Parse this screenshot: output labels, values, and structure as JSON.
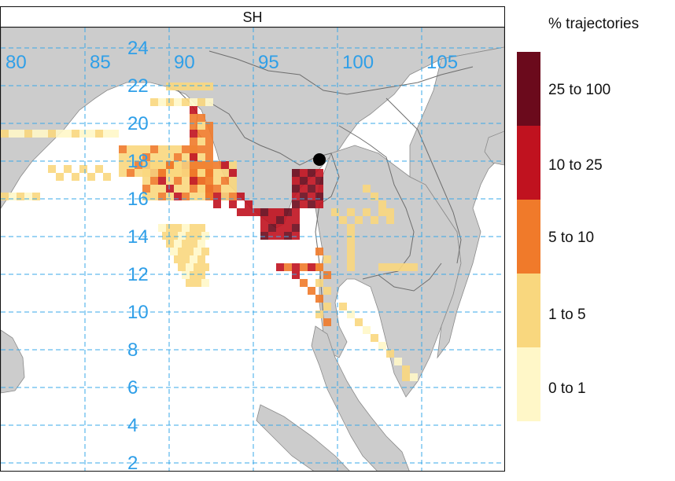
{
  "panel": {
    "title": "SH"
  },
  "axes": {
    "lon_ticks": [
      "80",
      "85",
      "90",
      "95",
      "100",
      "105"
    ],
    "lat_ticks": [
      "24",
      "22",
      "20",
      "18",
      "16",
      "14",
      "12",
      "10",
      "8",
      "6",
      "4",
      "2"
    ],
    "tick_color": "#2f9fe8",
    "grid_color": "#3aa9e8",
    "grid_style": "dashed"
  },
  "legend": {
    "title": "% trajectories",
    "bins": [
      {
        "label": "25 to 100",
        "color": "#6b0a1c"
      },
      {
        "label": "10 to 25",
        "color": "#c0121f"
      },
      {
        "label": "5 to 10",
        "color": "#f07a2a"
      },
      {
        "label": "1 to 5",
        "color": "#f9d77e"
      },
      {
        "label": "0 to 1",
        "color": "#fff7c8"
      }
    ]
  },
  "colors": {
    "land": "#cccccc",
    "sea": "#ffffff",
    "border": "#6e6e6e",
    "source_point": "#000000"
  },
  "map_data": {
    "source_point_label": "",
    "density_pattern": "Trajectory density concentrated over Myanmar and the Bay of Bengal east of 88E, decreasing southward along the Andaman coast toward the Gulf of Thailand"
  }
}
